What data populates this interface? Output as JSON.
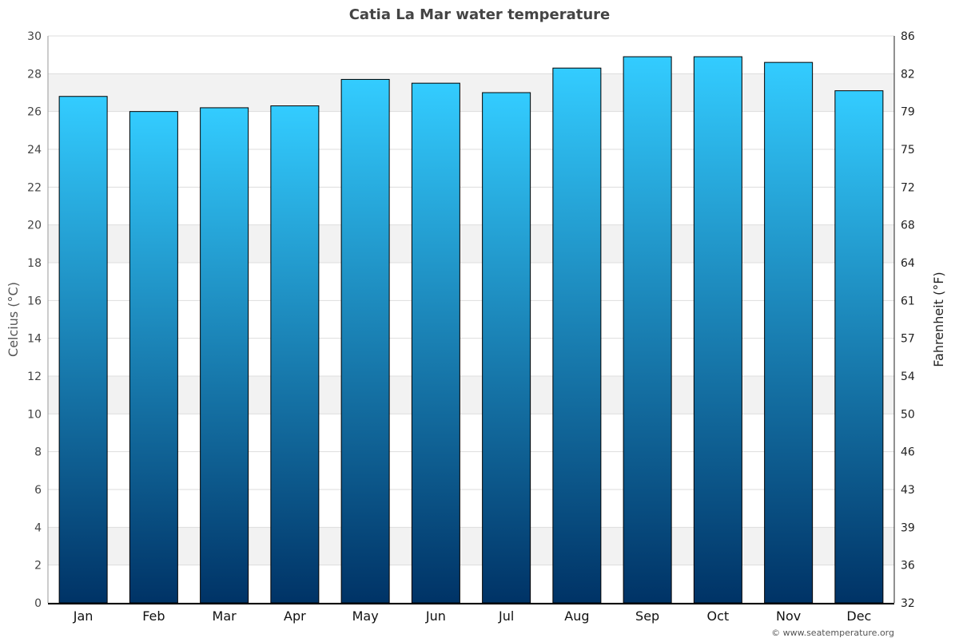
{
  "chart_data": {
    "type": "bar",
    "title": "Catia La Mar water temperature",
    "ylabel": "Celcius (°C)",
    "y2label": "Fahrenheit (°F)",
    "categories": [
      "Jan",
      "Feb",
      "Mar",
      "Apr",
      "May",
      "Jun",
      "Jul",
      "Aug",
      "Sep",
      "Oct",
      "Nov",
      "Dec"
    ],
    "values": [
      26.8,
      26.0,
      26.2,
      26.3,
      27.7,
      27.5,
      27.0,
      28.3,
      28.9,
      28.9,
      28.6,
      27.1
    ],
    "ylim": [
      0,
      30
    ],
    "yticks": [
      0,
      2,
      4,
      6,
      8,
      10,
      12,
      14,
      16,
      18,
      20,
      22,
      24,
      26,
      28,
      30
    ],
    "y2ticks": [
      "32",
      "36",
      "39",
      "43",
      "46",
      "50",
      "54",
      "57",
      "61",
      "64",
      "68",
      "72",
      "75",
      "79",
      "82",
      "86"
    ],
    "grid": true,
    "colors": {
      "bar_top": "#33ccff",
      "bar_bottom": "#003366",
      "band": "#f2f2f2"
    }
  },
  "credit": "© www.seatemperature.org"
}
